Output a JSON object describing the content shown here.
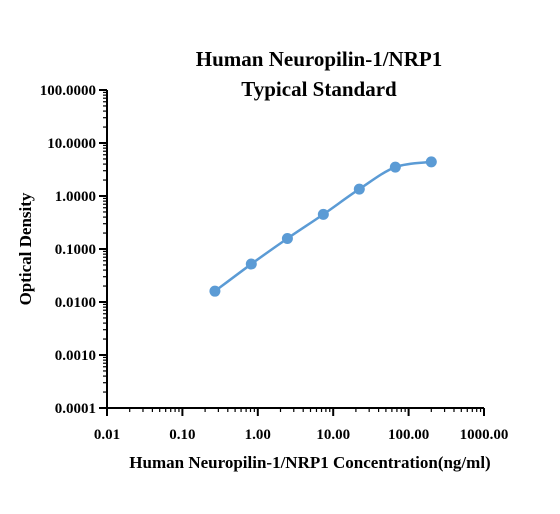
{
  "chart_data": {
    "type": "scatter",
    "title_line1": "Human Neuropilin-1/NRP1",
    "title_line2": "Typical Standard",
    "xlabel": "Human Neuropilin-1/NRP1 Concentration(ng/ml)",
    "ylabel": "Optical Density",
    "x_scale": "log",
    "y_scale": "log",
    "xlim": [
      0.01,
      1000
    ],
    "ylim": [
      0.0001,
      100
    ],
    "x_ticks": [
      0.01,
      0.1,
      1,
      10,
      100,
      1000
    ],
    "x_tick_labels": [
      "0.01",
      "0.10",
      "1.00",
      "10.00",
      "100.00",
      "1000.00"
    ],
    "y_ticks": [
      0.0001,
      0.001,
      0.01,
      0.1,
      1,
      10,
      100
    ],
    "y_tick_labels": [
      "0.0001",
      "0.0010",
      "0.0100",
      "0.1000",
      "1.0000",
      "10.0000",
      "100.0000"
    ],
    "grid": false,
    "legend": "none",
    "series": [
      {
        "x": [
          0.27,
          0.82,
          2.47,
          7.4,
          22.2,
          66.7,
          200
        ],
        "y": [
          0.016,
          0.052,
          0.158,
          0.45,
          1.35,
          3.5,
          4.4
        ],
        "color": "#5b9bd5",
        "fit_line": true
      }
    ]
  }
}
